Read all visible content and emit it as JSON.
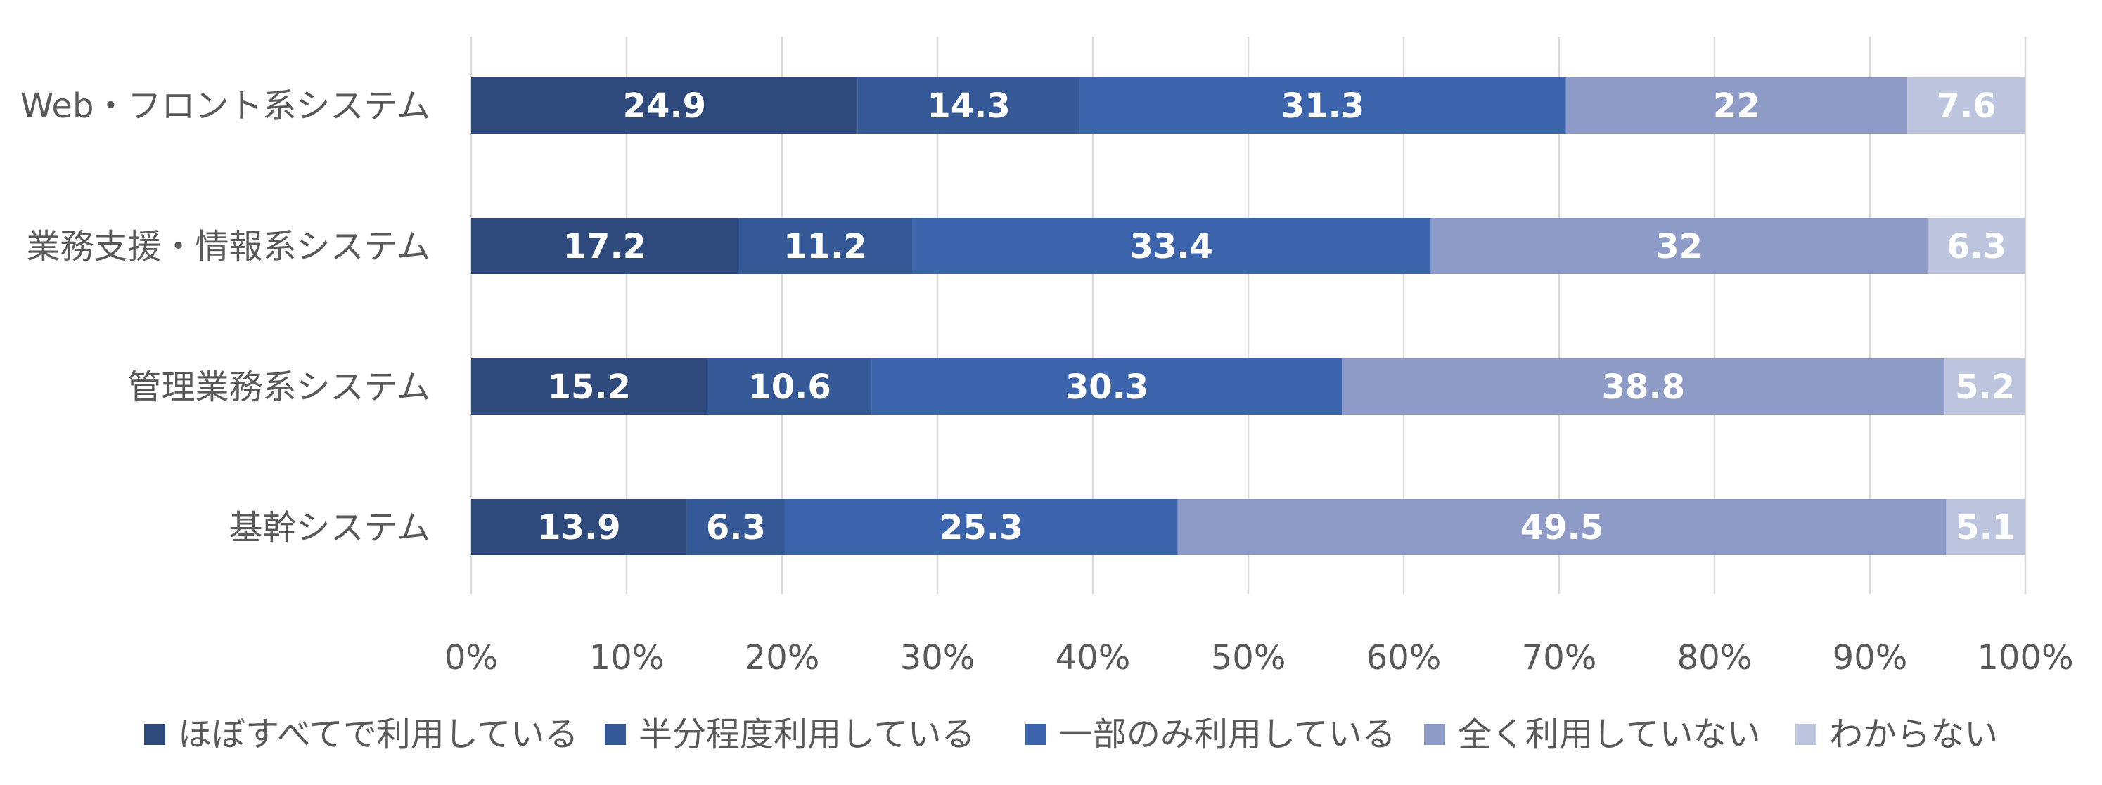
{
  "chart_data": {
    "type": "bar",
    "orientation": "horizontal",
    "stacked": "percent",
    "categories": [
      "Web・フロント系システム",
      "業務支援・情報系システム",
      "管理業務系システム",
      "基幹システム"
    ],
    "series": [
      {
        "name": "ほぼすべてで利用している",
        "color": "#2e4a7d",
        "values": [
          24.9,
          17.2,
          15.2,
          13.9
        ]
      },
      {
        "name": "半分程度利用している",
        "color": "#355996",
        "values": [
          14.3,
          11.2,
          10.6,
          6.3
        ]
      },
      {
        "name": "一部のみ利用している",
        "color": "#3b64ad",
        "values": [
          31.3,
          33.4,
          30.3,
          25.3
        ]
      },
      {
        "name": "全く利用していない",
        "color": "#8d9bc6",
        "values": [
          22,
          32,
          38.8,
          49.5
        ]
      },
      {
        "name": "わからない",
        "color": "#bcc4de",
        "values": [
          7.6,
          6.3,
          5.2,
          5.1
        ]
      }
    ],
    "x_ticks": [
      "0%",
      "10%",
      "20%",
      "30%",
      "40%",
      "50%",
      "60%",
      "70%",
      "80%",
      "90%",
      "100%"
    ],
    "xlim": [
      0,
      100
    ],
    "grid": "vertical",
    "legend": "bottom"
  }
}
